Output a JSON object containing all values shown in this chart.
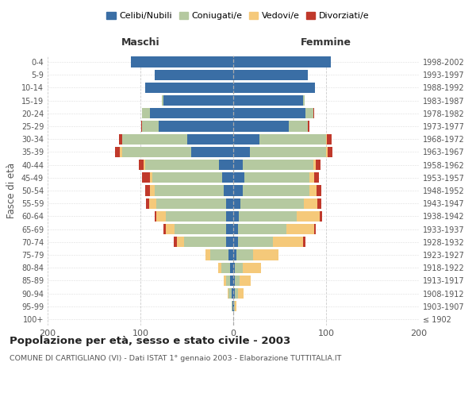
{
  "age_groups": [
    "100+",
    "95-99",
    "90-94",
    "85-89",
    "80-84",
    "75-79",
    "70-74",
    "65-69",
    "60-64",
    "55-59",
    "50-54",
    "45-49",
    "40-44",
    "35-39",
    "30-34",
    "25-29",
    "20-24",
    "15-19",
    "10-14",
    "5-9",
    "0-4"
  ],
  "birth_years": [
    "≤ 1902",
    "1903-1907",
    "1908-1912",
    "1913-1917",
    "1918-1922",
    "1923-1927",
    "1928-1932",
    "1933-1937",
    "1938-1942",
    "1943-1947",
    "1948-1952",
    "1953-1957",
    "1958-1962",
    "1963-1967",
    "1968-1972",
    "1973-1977",
    "1978-1982",
    "1983-1987",
    "1988-1992",
    "1993-1997",
    "1998-2002"
  ],
  "maschi": {
    "celibi": [
      0,
      1,
      2,
      3,
      3,
      5,
      8,
      8,
      8,
      8,
      10,
      12,
      15,
      45,
      50,
      80,
      90,
      75,
      95,
      85,
      110
    ],
    "coniugati": [
      0,
      1,
      3,
      5,
      10,
      20,
      45,
      55,
      65,
      75,
      75,
      75,
      80,
      75,
      70,
      18,
      8,
      2,
      0,
      0,
      0
    ],
    "vedovi": [
      0,
      0,
      1,
      2,
      3,
      5,
      8,
      10,
      10,
      8,
      5,
      3,
      2,
      2,
      0,
      0,
      0,
      0,
      0,
      0,
      0
    ],
    "divorziati": [
      0,
      0,
      0,
      0,
      0,
      0,
      3,
      2,
      2,
      3,
      5,
      8,
      5,
      5,
      3,
      1,
      0,
      0,
      0,
      0,
      0
    ]
  },
  "femmine": {
    "nubili": [
      0,
      1,
      2,
      2,
      2,
      3,
      5,
      5,
      6,
      8,
      10,
      12,
      10,
      18,
      28,
      60,
      78,
      75,
      88,
      80,
      105
    ],
    "coniugate": [
      0,
      1,
      3,
      5,
      8,
      18,
      38,
      52,
      62,
      68,
      72,
      70,
      76,
      82,
      72,
      20,
      8,
      2,
      0,
      0,
      0
    ],
    "vedove": [
      0,
      1,
      6,
      12,
      20,
      28,
      32,
      30,
      25,
      15,
      8,
      5,
      3,
      2,
      1,
      0,
      0,
      0,
      0,
      0,
      0
    ],
    "divorziate": [
      0,
      0,
      0,
      0,
      0,
      0,
      3,
      2,
      3,
      4,
      5,
      5,
      5,
      5,
      5,
      2,
      1,
      0,
      0,
      0,
      0
    ]
  },
  "colors": {
    "celibi": "#3a6ea5",
    "coniugati": "#b5c9a0",
    "vedovi": "#f5c97a",
    "divorziati": "#c0392b"
  },
  "xlim": 200,
  "title": "Popolazione per età, sesso e stato civile - 2003",
  "subtitle": "COMUNE DI CARTIGLIANO (VI) - Dati ISTAT 1° gennaio 2003 - Elaborazione TUTTITALIA.IT",
  "ylabel_left": "Fasce di età",
  "xlabel_maschi": "Maschi",
  "xlabel_femmine": "Femmine",
  "legend_labels": [
    "Celibi/Nubili",
    "Coniugati/e",
    "Vedovi/e",
    "Divorziati/e"
  ]
}
